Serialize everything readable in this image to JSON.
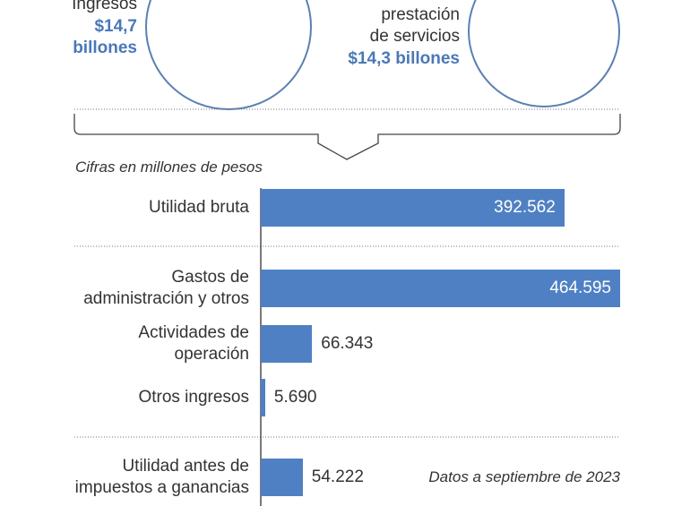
{
  "highlights": [
    {
      "label": "Ingresos",
      "amount": "$14,7\nbillones"
    },
    {
      "label": "prestación\nde servicios",
      "amount": "$14,3 billones"
    }
  ],
  "chart_data": {
    "type": "bar",
    "orientation": "horizontal",
    "subtitle": "Cifras en millones de pesos",
    "note": "Datos a septiembre de 2023",
    "categories": [
      "Utilidad bruta",
      "Gastos de\nadministración y otros",
      "Actividades de\noperación",
      "Otros ingresos",
      "Utilidad antes de\nimpuestos a ganancias"
    ],
    "values": [
      392562,
      464595,
      66343,
      5690,
      54222
    ],
    "value_labels": [
      "392.562",
      "464.595",
      "66.343",
      "5.690",
      "54.222"
    ],
    "color": "#4f80c3"
  }
}
